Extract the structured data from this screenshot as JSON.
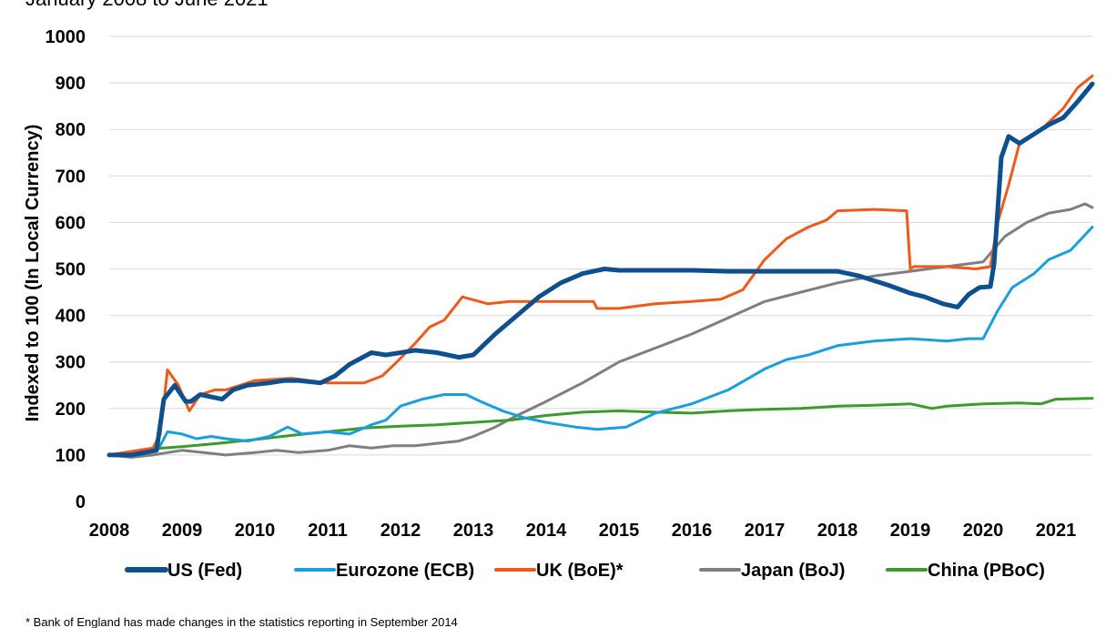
{
  "subtitle": "January 2008 to June 2021",
  "footnote": "* Bank of England has made changes in the statistics reporting in September 2014",
  "chart_data": {
    "type": "line",
    "title": "",
    "subtitle": "January 2008 to June 2021",
    "xlabel": "",
    "ylabel": "Indexed to 100 (In Local Currency)",
    "xlim": [
      2008,
      2021.5
    ],
    "ylim": [
      0,
      1000
    ],
    "xticks": [
      "2008",
      "2009",
      "2010",
      "2011",
      "2012",
      "2013",
      "2014",
      "2015",
      "2016",
      "2017",
      "2018",
      "2019",
      "2020",
      "2021"
    ],
    "yticks": [
      "0",
      "100",
      "200",
      "300",
      "400",
      "500",
      "600",
      "700",
      "800",
      "900",
      "1000"
    ],
    "grid": true,
    "legend_position": "bottom",
    "series": [
      {
        "name": "US (Fed)",
        "color": "#0e4f8e",
        "width": 5,
        "x": [
          2008,
          2008.3,
          2008.65,
          2008.75,
          2008.9,
          2009.05,
          2009.12,
          2009.25,
          2009.55,
          2009.7,
          2009.9,
          2010.2,
          2010.4,
          2010.6,
          2010.9,
          2011.1,
          2011.3,
          2011.6,
          2011.8,
          2012.0,
          2012.2,
          2012.5,
          2012.8,
          2013.0,
          2013.3,
          2013.6,
          2013.9,
          2014.2,
          2014.5,
          2014.8,
          2015.0,
          2015.5,
          2016.0,
          2016.5,
          2017.0,
          2017.5,
          2018.0,
          2018.3,
          2018.7,
          2019.0,
          2019.2,
          2019.45,
          2019.65,
          2019.8,
          2019.95,
          2020.1,
          2020.15,
          2020.25,
          2020.35,
          2020.5,
          2020.7,
          2020.9,
          2021.1,
          2021.3,
          2021.5
        ],
        "y": [
          100,
          100,
          110,
          220,
          250,
          215,
          215,
          230,
          220,
          240,
          250,
          255,
          260,
          260,
          255,
          270,
          295,
          320,
          315,
          320,
          325,
          320,
          310,
          315,
          360,
          400,
          440,
          470,
          490,
          500,
          497,
          497,
          497,
          495,
          495,
          495,
          495,
          485,
          465,
          448,
          440,
          425,
          418,
          445,
          460,
          462,
          510,
          740,
          785,
          770,
          790,
          810,
          825,
          860,
          898
        ]
      },
      {
        "name": "Eurozone (ECB)",
        "color": "#19a0dc",
        "width": 3,
        "x": [
          2008,
          2008.5,
          2008.7,
          2008.8,
          2009.0,
          2009.2,
          2009.4,
          2009.6,
          2009.9,
          2010.2,
          2010.45,
          2010.65,
          2011.0,
          2011.3,
          2011.6,
          2011.8,
          2012.0,
          2012.3,
          2012.6,
          2012.9,
          2013.1,
          2013.4,
          2013.7,
          2014.0,
          2014.4,
          2014.7,
          2015.1,
          2015.5,
          2016.0,
          2016.5,
          2017.0,
          2017.3,
          2017.6,
          2018.0,
          2018.5,
          2019.0,
          2019.5,
          2019.8,
          2020.0,
          2020.2,
          2020.4,
          2020.7,
          2020.9,
          2021.2,
          2021.5
        ],
        "y": [
          100,
          105,
          120,
          150,
          145,
          135,
          140,
          135,
          130,
          140,
          160,
          145,
          150,
          145,
          165,
          175,
          205,
          220,
          230,
          230,
          215,
          195,
          180,
          170,
          160,
          155,
          160,
          190,
          210,
          240,
          285,
          305,
          315,
          335,
          345,
          350,
          345,
          350,
          350,
          410,
          460,
          490,
          520,
          540,
          590
        ]
      },
      {
        "name": "UK (BoE)*",
        "color": "#ef5a1a",
        "width": 3,
        "x": [
          2008,
          2008.6,
          2008.7,
          2008.8,
          2008.95,
          2009.1,
          2009.25,
          2009.45,
          2009.6,
          2009.8,
          2010.0,
          2010.5,
          2011.0,
          2011.5,
          2011.75,
          2011.95,
          2012.2,
          2012.4,
          2012.6,
          2012.85,
          2013.2,
          2013.5,
          2014.0,
          2014.65,
          2014.7,
          2015.0,
          2015.5,
          2016.0,
          2016.4,
          2016.7,
          2017.0,
          2017.3,
          2017.6,
          2017.85,
          2018.0,
          2018.5,
          2018.95,
          2019.0,
          2019.05,
          2019.5,
          2019.9,
          2020.1,
          2020.2,
          2020.35,
          2020.5,
          2020.8,
          2021.1,
          2021.3,
          2021.5
        ],
        "y": [
          100,
          115,
          145,
          283,
          250,
          195,
          230,
          240,
          240,
          250,
          260,
          265,
          255,
          255,
          270,
          300,
          340,
          375,
          390,
          440,
          425,
          430,
          430,
          430,
          415,
          415,
          425,
          430,
          435,
          455,
          520,
          565,
          590,
          605,
          625,
          628,
          625,
          500,
          505,
          505,
          500,
          505,
          600,
          680,
          770,
          800,
          845,
          890,
          915
        ]
      },
      {
        "name": "Japan (BoJ)",
        "color": "#7f7f7f",
        "width": 3,
        "x": [
          2008,
          2008.3,
          2008.6,
          2008.8,
          2009.0,
          2009.3,
          2009.6,
          2010.0,
          2010.3,
          2010.6,
          2011.0,
          2011.3,
          2011.6,
          2011.9,
          2012.2,
          2012.5,
          2012.8,
          2013.0,
          2013.3,
          2013.6,
          2014.0,
          2014.5,
          2015.0,
          2015.5,
          2016.0,
          2016.5,
          2017.0,
          2017.5,
          2018.0,
          2018.5,
          2019.0,
          2019.5,
          2020.0,
          2020.3,
          2020.6,
          2020.9,
          2021.2,
          2021.4,
          2021.5
        ],
        "y": [
          100,
          95,
          100,
          105,
          110,
          105,
          100,
          105,
          110,
          105,
          110,
          120,
          115,
          120,
          120,
          125,
          130,
          140,
          160,
          185,
          215,
          255,
          300,
          330,
          360,
          395,
          430,
          450,
          470,
          485,
          495,
          505,
          515,
          570,
          600,
          620,
          628,
          640,
          632
        ]
      },
      {
        "name": "China (PBoC)",
        "color": "#3d9a2c",
        "width": 3,
        "x": [
          2008,
          2008.5,
          2009.0,
          2009.5,
          2010.0,
          2010.5,
          2011.0,
          2011.5,
          2012.0,
          2012.5,
          2013.0,
          2013.5,
          2014.0,
          2014.5,
          2015.0,
          2015.5,
          2016.0,
          2016.5,
          2017.0,
          2017.5,
          2018.0,
          2018.5,
          2019.0,
          2019.3,
          2019.5,
          2020.0,
          2020.5,
          2020.8,
          2021.0,
          2021.5
        ],
        "y": [
          100,
          112,
          118,
          125,
          133,
          142,
          150,
          158,
          162,
          165,
          170,
          175,
          185,
          192,
          195,
          192,
          190,
          195,
          198,
          200,
          205,
          207,
          210,
          200,
          205,
          210,
          212,
          210,
          220,
          222
        ]
      }
    ]
  }
}
